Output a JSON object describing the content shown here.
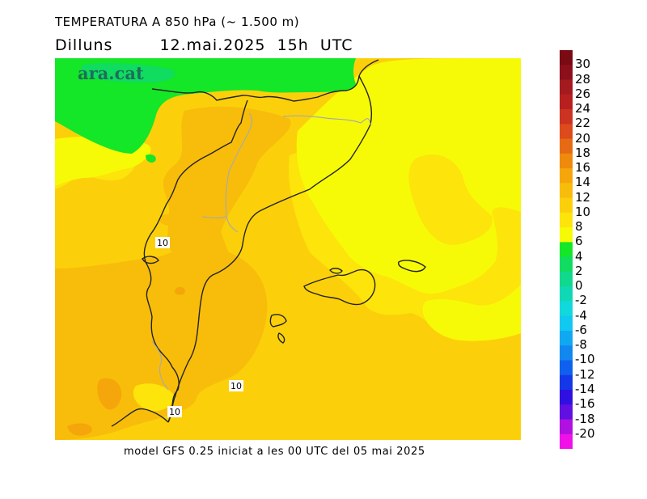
{
  "header": {
    "title": "TEMPERATURA A 850 hPa (~ 1.500 m)",
    "day": "Dilluns",
    "datetime": "12.mai.2025  15h  UTC"
  },
  "map": {
    "logo": "ara.cat",
    "contour_labels": [
      "10",
      "10",
      "10"
    ]
  },
  "footer": {
    "model_text": "model GFS 0.25 iniciat a les 00 UTC del 05 mai 2025"
  },
  "colorbar": {
    "levels": [
      {
        "label": "30",
        "color": "#7a0a14"
      },
      {
        "label": "28",
        "color": "#8c0f1c"
      },
      {
        "label": "26",
        "color": "#a31a1f"
      },
      {
        "label": "24",
        "color": "#b81f1f"
      },
      {
        "label": "22",
        "color": "#cc3322"
      },
      {
        "label": "20",
        "color": "#dd4a1c"
      },
      {
        "label": "18",
        "color": "#e66a14"
      },
      {
        "label": "16",
        "color": "#ef8a0c"
      },
      {
        "label": "14",
        "color": "#f5a60a"
      },
      {
        "label": "12",
        "color": "#f8bd0a"
      },
      {
        "label": "10",
        "color": "#fbd00a"
      },
      {
        "label": "8",
        "color": "#fde40a"
      },
      {
        "label": "6",
        "color": "#f6fa06"
      },
      {
        "label": "4",
        "color": "#14e628"
      },
      {
        "label": "2",
        "color": "#10dc60"
      },
      {
        "label": "0",
        "color": "#10d88c"
      },
      {
        "label": "-2",
        "color": "#10d8b4"
      },
      {
        "label": "-4",
        "color": "#10d8dc"
      },
      {
        "label": "-6",
        "color": "#10c8f0"
      },
      {
        "label": "-8",
        "color": "#10a8f0"
      },
      {
        "label": "-10",
        "color": "#1088f0"
      },
      {
        "label": "-12",
        "color": "#1060f0"
      },
      {
        "label": "-14",
        "color": "#1438e8"
      },
      {
        "label": "-16",
        "color": "#3010e0"
      },
      {
        "label": "-18",
        "color": "#6010e0"
      },
      {
        "label": "-20",
        "color": "#b010e0"
      },
      {
        "label": "",
        "color": "#f010e8"
      }
    ]
  }
}
